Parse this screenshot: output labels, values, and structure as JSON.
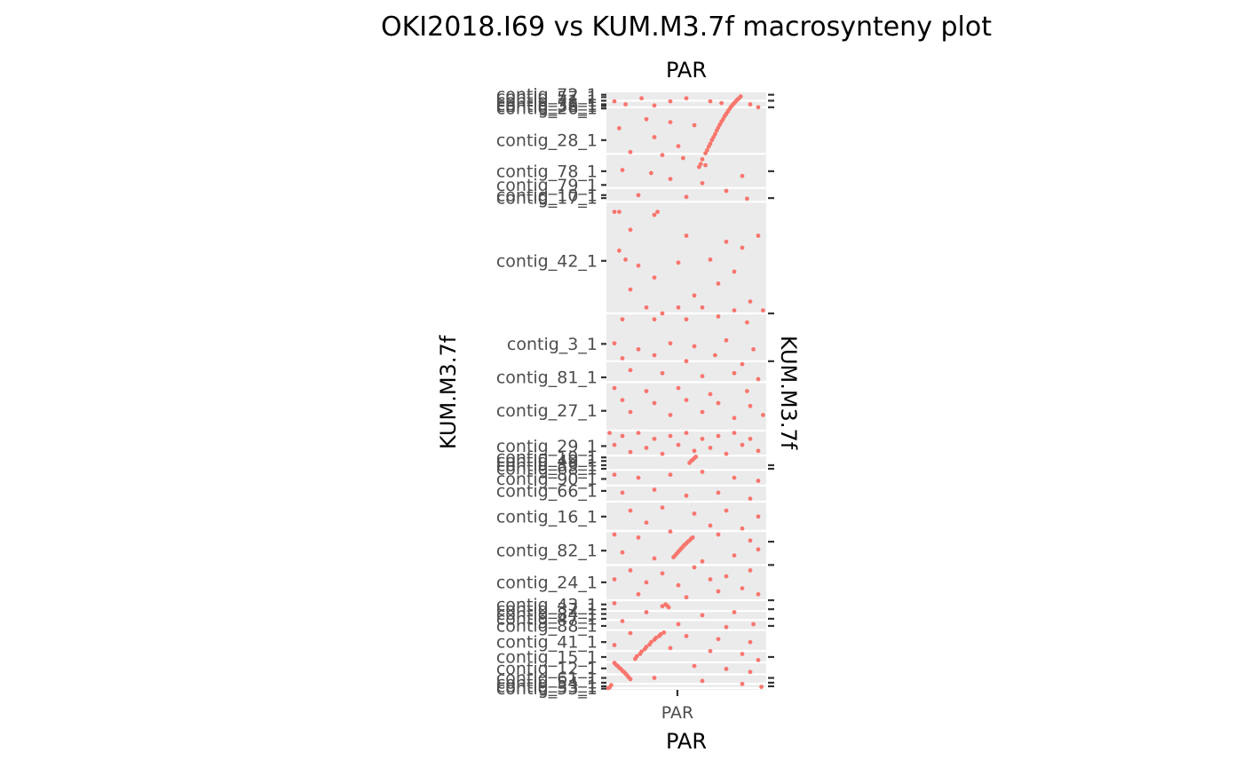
{
  "chart_data": {
    "type": "scatter",
    "title": "OKI2018.I69 vs KUM.M3.7f macrosynteny plot",
    "xlabel": "PAR",
    "xlabel_top": "PAR",
    "ylabel": "KUM.M3.7f",
    "ylabel_right": "KUM.M3.7f",
    "x_categories": [
      "PAR"
    ],
    "xlim": [
      0,
      1
    ],
    "ylim": [
      0,
      1
    ],
    "grid": true,
    "point_color": "#f8766d",
    "panel_color": "#ebebeb",
    "y_ticks": [
      {
        "label": "contig_72_1",
        "y": 0.996
      },
      {
        "label": "contig_57_1",
        "y": 0.992
      },
      {
        "label": "contig_71_1",
        "y": 0.986
      },
      {
        "label": "contig_36_1",
        "y": 0.98
      },
      {
        "label": "contig_38_1",
        "y": 0.977
      },
      {
        "label": "contig_26_1",
        "y": 0.973
      },
      {
        "label": "contig_28_1",
        "y": 0.92
      },
      {
        "label": "contig_78_1",
        "y": 0.868
      },
      {
        "label": "contig_79_1",
        "y": 0.845
      },
      {
        "label": "contig_10_1",
        "y": 0.828
      },
      {
        "label": "contig_17_1",
        "y": 0.823
      },
      {
        "label": "contig_42_1",
        "y": 0.718
      },
      {
        "label": "contig_3_1",
        "y": 0.579
      },
      {
        "label": "contig_81_1",
        "y": 0.523
      },
      {
        "label": "contig_27_1",
        "y": 0.467
      },
      {
        "label": "contig_29_1",
        "y": 0.408
      },
      {
        "label": "contig_19_1",
        "y": 0.389
      },
      {
        "label": "contig_49_1",
        "y": 0.383
      },
      {
        "label": "contig_39_1",
        "y": 0.376
      },
      {
        "label": "contig_68_1",
        "y": 0.37
      },
      {
        "label": "contig_90_1",
        "y": 0.353
      },
      {
        "label": "contig_66_1",
        "y": 0.333
      },
      {
        "label": "contig_16_1",
        "y": 0.29
      },
      {
        "label": "contig_82_1",
        "y": 0.233
      },
      {
        "label": "contig_24_1",
        "y": 0.18
      },
      {
        "label": "contig_43_1",
        "y": 0.143
      },
      {
        "label": "contig_37_1",
        "y": 0.135
      },
      {
        "label": "contig_84_1",
        "y": 0.127
      },
      {
        "label": "contig_47_1",
        "y": 0.119
      },
      {
        "label": "contig_88_1",
        "y": 0.107
      },
      {
        "label": "contig_41_1",
        "y": 0.08
      },
      {
        "label": "contig_15_1",
        "y": 0.055
      },
      {
        "label": "contig_12_1",
        "y": 0.036
      },
      {
        "label": "contig_61_1",
        "y": 0.02
      },
      {
        "label": "contig_54_1",
        "y": 0.012
      },
      {
        "label": "contig_33_1",
        "y": 0.006
      },
      {
        "label": "contig_53_1",
        "y": 0.002
      }
    ],
    "boundaries": [
      0.986,
      0.975,
      0.897,
      0.84,
      0.817,
      0.63,
      0.55,
      0.515,
      0.434,
      0.392,
      0.368,
      0.342,
      0.315,
      0.266,
      0.209,
      0.15,
      0.132,
      0.117,
      0.1,
      0.065,
      0.046,
      0.026,
      0.01,
      0.003
    ],
    "right_ticks": [
      0.996,
      0.986,
      0.975,
      0.868,
      0.823,
      0.63,
      0.55,
      0.376,
      0.37,
      0.248,
      0.209,
      0.15,
      0.135,
      0.119,
      0.107,
      0.055,
      0.02,
      0.012,
      0.006
    ],
    "points": [
      [
        0.58,
        0.875
      ],
      [
        0.6,
        0.888
      ],
      [
        0.62,
        0.898
      ],
      [
        0.64,
        0.909
      ],
      [
        0.66,
        0.92
      ],
      [
        0.68,
        0.93
      ],
      [
        0.7,
        0.941
      ],
      [
        0.72,
        0.951
      ],
      [
        0.74,
        0.96
      ],
      [
        0.76,
        0.968
      ],
      [
        0.78,
        0.976
      ],
      [
        0.8,
        0.982
      ],
      [
        0.82,
        0.988
      ],
      [
        0.84,
        0.993
      ],
      [
        0.59,
        0.88
      ],
      [
        0.63,
        0.903
      ],
      [
        0.67,
        0.925
      ],
      [
        0.71,
        0.946
      ],
      [
        0.75,
        0.964
      ],
      [
        0.79,
        0.979
      ],
      [
        0.83,
        0.99
      ],
      [
        0.65,
        0.914
      ],
      [
        0.69,
        0.936
      ],
      [
        0.73,
        0.955
      ],
      [
        0.77,
        0.972
      ],
      [
        0.81,
        0.985
      ],
      [
        0.42,
        0.222
      ],
      [
        0.44,
        0.228
      ],
      [
        0.46,
        0.234
      ],
      [
        0.48,
        0.24
      ],
      [
        0.5,
        0.245
      ],
      [
        0.52,
        0.25
      ],
      [
        0.54,
        0.255
      ],
      [
        0.43,
        0.225
      ],
      [
        0.45,
        0.231
      ],
      [
        0.47,
        0.237
      ],
      [
        0.49,
        0.243
      ],
      [
        0.51,
        0.248
      ],
      [
        0.53,
        0.253
      ],
      [
        0.18,
        0.052
      ],
      [
        0.21,
        0.06
      ],
      [
        0.24,
        0.068
      ],
      [
        0.27,
        0.076
      ],
      [
        0.3,
        0.084
      ],
      [
        0.33,
        0.09
      ],
      [
        0.36,
        0.096
      ],
      [
        0.19,
        0.056
      ],
      [
        0.22,
        0.064
      ],
      [
        0.25,
        0.072
      ],
      [
        0.28,
        0.08
      ],
      [
        0.31,
        0.087
      ],
      [
        0.34,
        0.093
      ],
      [
        0.05,
        0.045
      ],
      [
        0.07,
        0.04
      ],
      [
        0.09,
        0.035
      ],
      [
        0.11,
        0.03
      ],
      [
        0.13,
        0.024
      ],
      [
        0.15,
        0.018
      ],
      [
        0.06,
        0.042
      ],
      [
        0.08,
        0.037
      ],
      [
        0.1,
        0.032
      ],
      [
        0.12,
        0.027
      ],
      [
        0.14,
        0.021
      ],
      [
        0.02,
        0.004
      ],
      [
        0.03,
        0.008
      ],
      [
        0.01,
        0.003
      ],
      [
        0.52,
        0.38
      ],
      [
        0.54,
        0.385
      ],
      [
        0.56,
        0.39
      ],
      [
        0.53,
        0.383
      ],
      [
        0.55,
        0.388
      ],
      [
        0.35,
        0.14
      ],
      [
        0.37,
        0.143
      ],
      [
        0.39,
        0.138
      ],
      [
        0.38,
        0.141
      ],
      [
        0.05,
        0.985
      ],
      [
        0.12,
        0.98
      ],
      [
        0.22,
        0.99
      ],
      [
        0.3,
        0.978
      ],
      [
        0.4,
        0.985
      ],
      [
        0.5,
        0.99
      ],
      [
        0.65,
        0.985
      ],
      [
        0.72,
        0.982
      ],
      [
        0.9,
        0.98
      ],
      [
        0.95,
        0.975
      ],
      [
        0.25,
        0.955
      ],
      [
        0.4,
        0.95
      ],
      [
        0.08,
        0.94
      ],
      [
        0.55,
        0.945
      ],
      [
        0.3,
        0.925
      ],
      [
        0.45,
        0.91
      ],
      [
        0.15,
        0.9
      ],
      [
        0.35,
        0.895
      ],
      [
        0.48,
        0.89
      ],
      [
        0.62,
        0.878
      ],
      [
        0.1,
        0.87
      ],
      [
        0.28,
        0.865
      ],
      [
        0.85,
        0.86
      ],
      [
        0.4,
        0.855
      ],
      [
        0.6,
        0.848
      ],
      [
        0.75,
        0.835
      ],
      [
        0.2,
        0.828
      ],
      [
        0.5,
        0.825
      ],
      [
        0.88,
        0.822
      ],
      [
        0.05,
        0.8
      ],
      [
        0.08,
        0.8
      ],
      [
        0.3,
        0.795
      ],
      [
        0.32,
        0.8
      ],
      [
        0.15,
        0.77
      ],
      [
        0.5,
        0.76
      ],
      [
        0.75,
        0.75
      ],
      [
        0.85,
        0.74
      ],
      [
        0.08,
        0.735
      ],
      [
        0.12,
        0.72
      ],
      [
        0.2,
        0.71
      ],
      [
        0.45,
        0.715
      ],
      [
        0.65,
        0.72
      ],
      [
        0.8,
        0.7
      ],
      [
        0.95,
        0.76
      ],
      [
        0.3,
        0.69
      ],
      [
        0.7,
        0.68
      ],
      [
        0.15,
        0.67
      ],
      [
        0.55,
        0.66
      ],
      [
        0.9,
        0.65
      ],
      [
        0.25,
        0.64
      ],
      [
        0.45,
        0.64
      ],
      [
        0.6,
        0.64
      ],
      [
        0.35,
        0.63
      ],
      [
        0.8,
        0.635
      ],
      [
        0.98,
        0.635
      ],
      [
        0.1,
        0.62
      ],
      [
        0.3,
        0.62
      ],
      [
        0.5,
        0.62
      ],
      [
        0.7,
        0.625
      ],
      [
        0.88,
        0.615
      ],
      [
        0.05,
        0.58
      ],
      [
        0.2,
        0.57
      ],
      [
        0.4,
        0.58
      ],
      [
        0.55,
        0.575
      ],
      [
        0.75,
        0.585
      ],
      [
        0.92,
        0.57
      ],
      [
        0.1,
        0.555
      ],
      [
        0.3,
        0.56
      ],
      [
        0.5,
        0.55
      ],
      [
        0.68,
        0.56
      ],
      [
        0.85,
        0.545
      ],
      [
        0.15,
        0.535
      ],
      [
        0.35,
        0.53
      ],
      [
        0.6,
        0.525
      ],
      [
        0.8,
        0.53
      ],
      [
        0.95,
        0.52
      ],
      [
        0.05,
        0.505
      ],
      [
        0.25,
        0.5
      ],
      [
        0.45,
        0.505
      ],
      [
        0.65,
        0.495
      ],
      [
        0.88,
        0.5
      ],
      [
        0.1,
        0.485
      ],
      [
        0.3,
        0.48
      ],
      [
        0.5,
        0.485
      ],
      [
        0.7,
        0.48
      ],
      [
        0.9,
        0.475
      ],
      [
        0.15,
        0.465
      ],
      [
        0.4,
        0.46
      ],
      [
        0.6,
        0.465
      ],
      [
        0.8,
        0.455
      ],
      [
        0.98,
        0.46
      ],
      [
        0.02,
        0.43
      ],
      [
        0.1,
        0.425
      ],
      [
        0.2,
        0.43
      ],
      [
        0.3,
        0.42
      ],
      [
        0.4,
        0.425
      ],
      [
        0.5,
        0.43
      ],
      [
        0.6,
        0.42
      ],
      [
        0.7,
        0.425
      ],
      [
        0.8,
        0.43
      ],
      [
        0.9,
        0.42
      ],
      [
        0.05,
        0.41
      ],
      [
        0.25,
        0.405
      ],
      [
        0.45,
        0.41
      ],
      [
        0.65,
        0.405
      ],
      [
        0.85,
        0.41
      ],
      [
        0.15,
        0.398
      ],
      [
        0.35,
        0.395
      ],
      [
        0.55,
        0.4
      ],
      [
        0.75,
        0.395
      ],
      [
        0.95,
        0.4
      ],
      [
        0.05,
        0.36
      ],
      [
        0.2,
        0.355
      ],
      [
        0.4,
        0.36
      ],
      [
        0.6,
        0.365
      ],
      [
        0.8,
        0.355
      ],
      [
        0.95,
        0.35
      ],
      [
        0.1,
        0.33
      ],
      [
        0.3,
        0.335
      ],
      [
        0.5,
        0.325
      ],
      [
        0.7,
        0.33
      ],
      [
        0.9,
        0.32
      ],
      [
        0.15,
        0.3
      ],
      [
        0.35,
        0.305
      ],
      [
        0.55,
        0.295
      ],
      [
        0.75,
        0.3
      ],
      [
        0.95,
        0.29
      ],
      [
        0.25,
        0.28
      ],
      [
        0.65,
        0.275
      ],
      [
        0.85,
        0.27
      ],
      [
        0.05,
        0.26
      ],
      [
        0.2,
        0.255
      ],
      [
        0.4,
        0.265
      ],
      [
        0.7,
        0.26
      ],
      [
        0.9,
        0.25
      ],
      [
        0.1,
        0.23
      ],
      [
        0.3,
        0.22
      ],
      [
        0.6,
        0.215
      ],
      [
        0.8,
        0.225
      ],
      [
        0.95,
        0.235
      ],
      [
        0.15,
        0.2
      ],
      [
        0.35,
        0.195
      ],
      [
        0.55,
        0.205
      ],
      [
        0.75,
        0.19
      ],
      [
        0.9,
        0.2
      ],
      [
        0.05,
        0.185
      ],
      [
        0.25,
        0.18
      ],
      [
        0.45,
        0.175
      ],
      [
        0.65,
        0.185
      ],
      [
        0.85,
        0.17
      ],
      [
        0.2,
        0.16
      ],
      [
        0.5,
        0.155
      ],
      [
        0.7,
        0.165
      ],
      [
        0.95,
        0.16
      ],
      [
        0.05,
        0.145
      ],
      [
        0.25,
        0.13
      ],
      [
        0.6,
        0.125
      ],
      [
        0.8,
        0.13
      ],
      [
        0.1,
        0.115
      ],
      [
        0.45,
        0.11
      ],
      [
        0.75,
        0.105
      ],
      [
        0.92,
        0.11
      ],
      [
        0.15,
        0.095
      ],
      [
        0.5,
        0.09
      ],
      [
        0.7,
        0.085
      ],
      [
        0.9,
        0.08
      ],
      [
        0.05,
        0.075
      ],
      [
        0.4,
        0.07
      ],
      [
        0.65,
        0.065
      ],
      [
        0.85,
        0.06
      ],
      [
        0.95,
        0.05
      ],
      [
        0.55,
        0.04
      ],
      [
        0.75,
        0.035
      ],
      [
        0.9,
        0.03
      ],
      [
        0.3,
        0.02
      ],
      [
        0.6,
        0.015
      ],
      [
        0.85,
        0.01
      ],
      [
        0.97,
        0.005
      ]
    ]
  }
}
